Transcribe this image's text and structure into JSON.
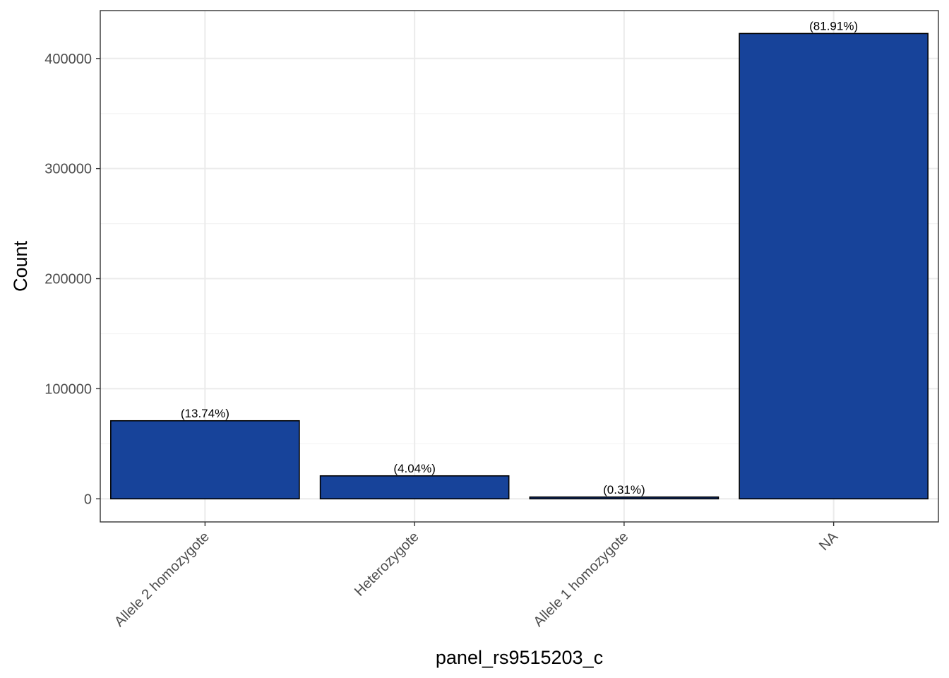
{
  "chart_data": {
    "type": "bar",
    "xlabel": "panel_rs9515203_c",
    "ylabel": "Count",
    "categories": [
      "Allele 2 homozygote",
      "Heterozygote",
      "Allele 1 homozygote",
      "NA"
    ],
    "values": [
      70900,
      20850,
      1600,
      422700
    ],
    "value_labels": [
      "(13.74%)",
      "(4.04%)",
      "(0.31%)",
      "(81.91%)"
    ],
    "ylim": [
      -21000,
      443500
    ],
    "yticks": [
      0,
      100000,
      200000,
      300000,
      400000
    ],
    "grid": true,
    "legend": "none",
    "colors": {
      "bar_fill": "#17439A",
      "bar_stroke": "#000000",
      "grid_major": "#EBEBEB",
      "grid_minor": "#F4F4F4",
      "panel_border": "#333333"
    }
  }
}
